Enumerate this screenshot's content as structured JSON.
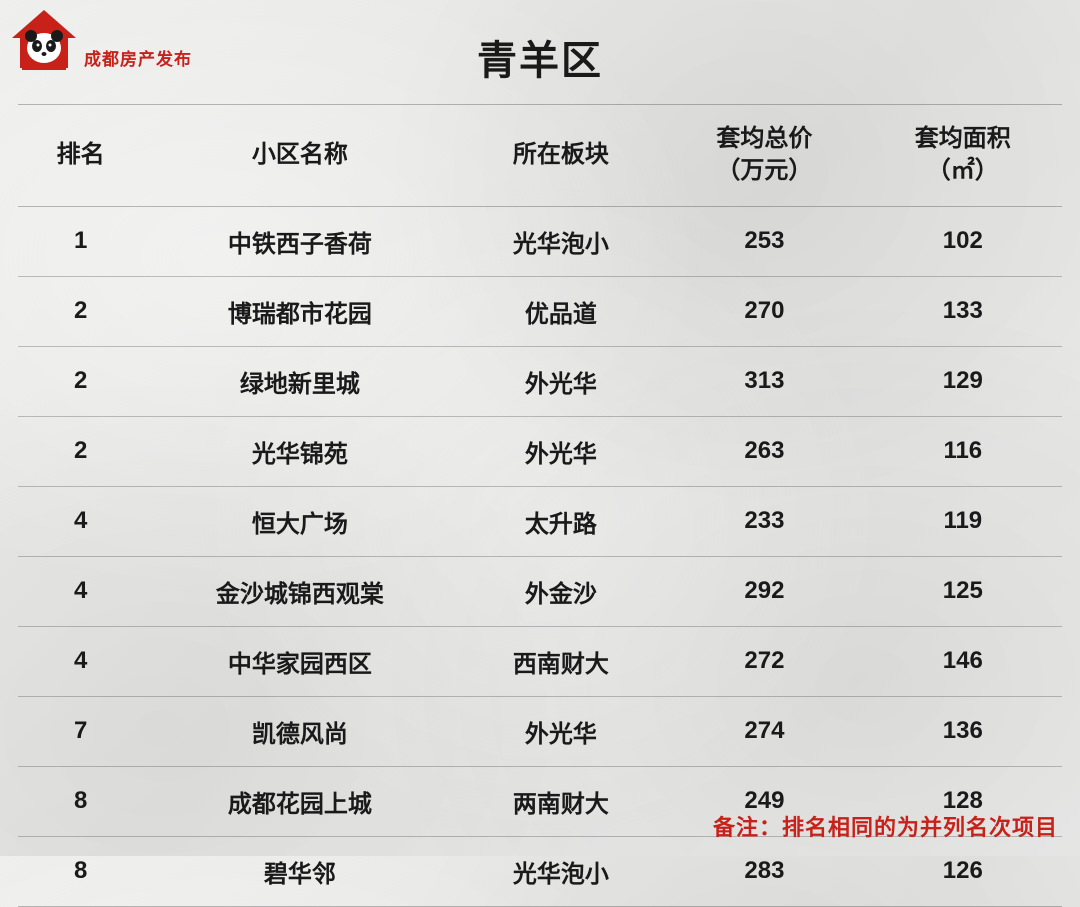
{
  "logo": {
    "text": "成都房产发布",
    "icon_color": "#c7211a",
    "panda_white": "#ffffff",
    "panda_black": "#1a1a1a"
  },
  "title": "青羊区",
  "table": {
    "columns": [
      {
        "key": "rank",
        "label": "排名",
        "width": "12%"
      },
      {
        "key": "name",
        "label": "小区名称",
        "width": "30%"
      },
      {
        "key": "area",
        "label": "所在板块",
        "width": "20%"
      },
      {
        "key": "price",
        "label": "套均总价\n（万元）",
        "width": "19%"
      },
      {
        "key": "size",
        "label": "套均面积\n（㎡）",
        "width": "19%"
      }
    ],
    "rows": [
      {
        "rank": "1",
        "name": "中铁西子香荷",
        "area": "光华泡小",
        "price": "253",
        "size": "102"
      },
      {
        "rank": "2",
        "name": "博瑞都市花园",
        "area": "优品道",
        "price": "270",
        "size": "133"
      },
      {
        "rank": "2",
        "name": "绿地新里城",
        "area": "外光华",
        "price": "313",
        "size": "129"
      },
      {
        "rank": "2",
        "name": "光华锦苑",
        "area": "外光华",
        "price": "263",
        "size": "116"
      },
      {
        "rank": "4",
        "name": "恒大广场",
        "area": "太升路",
        "price": "233",
        "size": "119"
      },
      {
        "rank": "4",
        "name": "金沙城锦西观棠",
        "area": "外金沙",
        "price": "292",
        "size": "125"
      },
      {
        "rank": "4",
        "name": "中华家园西区",
        "area": "西南财大",
        "price": "272",
        "size": "146"
      },
      {
        "rank": "7",
        "name": "凯德风尚",
        "area": "外光华",
        "price": "274",
        "size": "136"
      },
      {
        "rank": "8",
        "name": "成都花园上城",
        "area": "两南财大",
        "price": "249",
        "size": "128"
      },
      {
        "rank": "8",
        "name": "碧华邻",
        "area": "光华泡小",
        "price": "283",
        "size": "126"
      }
    ],
    "header_fontsize": 24,
    "cell_fontsize": 24,
    "text_color": "#1a1a1a",
    "border_color": "rgba(0,0,0,0.25)"
  },
  "footnote": {
    "text": "备注：排名相同的为并列名次项目",
    "color": "#c7211a",
    "fontsize": 22
  },
  "background_color": "#e8e8e6"
}
